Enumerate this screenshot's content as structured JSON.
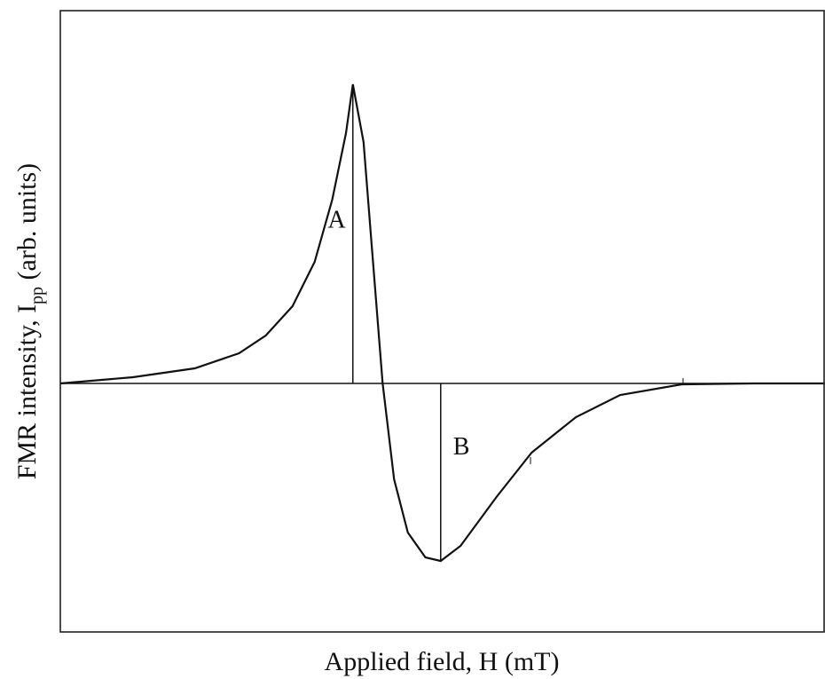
{
  "chart_data": {
    "type": "line",
    "xlabel": "Applied field, H (mT)",
    "ylabel": {
      "text": "FMR intensity, I",
      "sub": "pp",
      "rest": " (arb. units)"
    },
    "annotations": [
      "A",
      "B"
    ],
    "xlim": [
      0,
      100
    ],
    "ylim": [
      -2.8,
      4.2
    ],
    "series": [
      {
        "color": "#111111",
        "x": [
          0,
          9.5,
          17.6,
          23.4,
          26.9,
          30.4,
          33.3,
          35.6,
          37.4,
          38.3,
          39.7,
          40.8,
          42.2,
          43.7,
          45.5,
          47.8,
          49.8,
          52.4,
          57.1,
          61.7,
          67.5,
          73.3,
          81.4,
          90.7,
          100
        ],
        "values": [
          0,
          0.07,
          0.17,
          0.34,
          0.54,
          0.87,
          1.37,
          2.07,
          2.82,
          3.37,
          2.72,
          1.52,
          0,
          -1.08,
          -1.68,
          -1.96,
          -2.0,
          -1.83,
          -1.28,
          -0.78,
          -0.38,
          -0.13,
          -0.01,
          0,
          0
        ]
      }
    ]
  }
}
